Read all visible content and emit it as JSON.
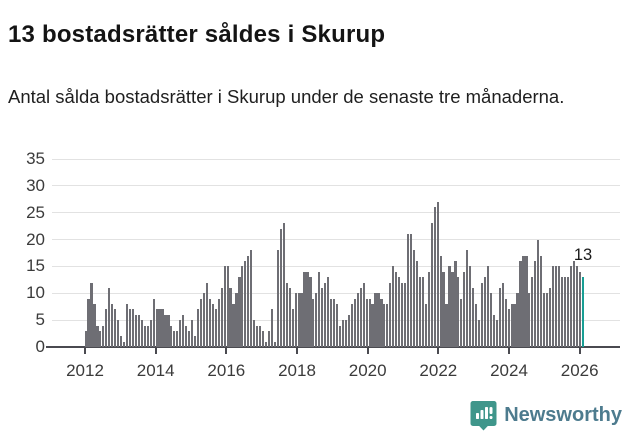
{
  "title": "13 bostadsrätter såldes i Skurup",
  "subtitle": "Antal sålda bostadsrätter i Skurup under de senaste tre månaderna.",
  "annotation_label": "13",
  "logo": {
    "text": "Newsworthy",
    "icon": "newsworthy-speech-bubble-barchart-icon"
  },
  "colors": {
    "bar": "#6e6e74",
    "highlight": "#189e94",
    "gridline": "#e2e2e2",
    "axis": "#4a4a50",
    "tick_text": "#3b3b3b",
    "logo_icon": "#3f968b",
    "logo_text": "#4d7b8e"
  },
  "chart_data": {
    "type": "bar",
    "title": "13 bostadsrätter såldes i Skurup",
    "subtitle": "Antal sålda bostadsrätter i Skurup under de senaste tre månaderna.",
    "xlabel": "",
    "ylabel": "",
    "frequency": "monthly",
    "x_start_month": "2012-01",
    "x_end_month": "2026-01",
    "x_tick_labels": [
      "2012",
      "2014",
      "2016",
      "2018",
      "2020",
      "2022",
      "2024",
      "2026"
    ],
    "y_ticks": [
      0,
      5,
      10,
      15,
      20,
      25,
      30,
      35
    ],
    "ylim": [
      0,
      35
    ],
    "grid": true,
    "values": [
      3,
      9,
      12,
      8,
      4,
      3,
      4,
      7,
      11,
      8,
      7,
      5,
      2,
      1,
      8,
      7,
      7,
      6,
      6,
      5,
      4,
      4,
      5,
      9,
      7,
      7,
      7,
      6,
      6,
      4,
      3,
      3,
      5,
      6,
      4,
      3,
      5,
      2,
      7,
      9,
      10,
      12,
      9,
      8,
      7,
      9,
      11,
      15,
      15,
      11,
      8,
      10,
      13,
      15,
      16,
      17,
      18,
      5,
      4,
      4,
      3,
      1,
      3,
      7,
      1,
      18,
      22,
      23,
      12,
      11,
      7,
      10,
      10,
      10,
      14,
      14,
      13,
      9,
      10,
      14,
      11,
      12,
      13,
      9,
      9,
      8,
      4,
      5,
      5,
      6,
      8,
      9,
      10,
      11,
      12,
      9,
      9,
      8,
      10,
      10,
      9,
      8,
      8,
      12,
      15,
      14,
      13,
      12,
      12,
      21,
      21,
      18,
      16,
      13,
      13,
      8,
      14,
      23,
      26,
      27,
      17,
      14,
      8,
      15,
      14,
      16,
      13,
      9,
      14,
      18,
      15,
      11,
      8,
      5,
      12,
      13,
      15,
      10,
      6,
      5,
      11,
      12,
      9,
      7,
      8,
      8,
      10,
      16,
      17,
      17,
      10,
      13,
      16,
      20,
      17,
      10,
      10,
      11,
      15,
      15,
      15,
      13,
      13,
      13,
      15,
      16,
      15,
      14,
      13
    ],
    "highlight": {
      "position": "last",
      "value": 13,
      "label": "13"
    },
    "legend": null
  }
}
